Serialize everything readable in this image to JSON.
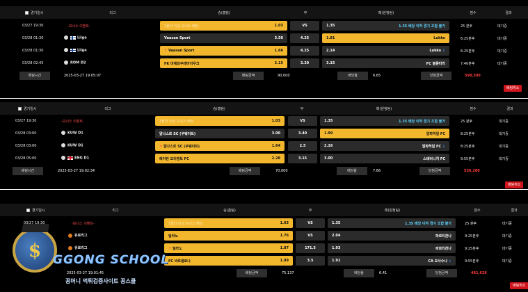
{
  "columns": {
    "date": "경기일시",
    "league": "리그",
    "home": "승(홈팀)",
    "draw": "무",
    "away": "패(원정팀)",
    "score": "점수",
    "result": "결과"
  },
  "summary_labels": {
    "bet_time": "배팅시간",
    "bet_amount": "배팅금액",
    "odds": "배당율",
    "win_amount": "당첨금액"
  },
  "bets": [
    {
      "rows": [
        {
          "date": "03/27 19:30",
          "league": "-보너스 이벤트-",
          "home": "1폴더 이상 보너스 배당",
          "home_odds": "1.03",
          "draw": "VS",
          "away": "1.35",
          "away_team": "1.35 배당 이하 경기 조합 불가",
          "score": "25 분후",
          "result": "대기중"
        },
        {
          "date": "03/28 01:30",
          "league": "Liiga",
          "flag": "fi",
          "home": "Vaasan Sport",
          "home_odds": "3.50",
          "draw": "4.25",
          "away": "1.81",
          "away_team": "Lukko",
          "score": "6:25분후",
          "result": "대기중"
        },
        {
          "date": "03/28 01:30",
          "league": "Liiga",
          "flag": "fi",
          "home": "Vaasan Sport",
          "home_odds": "1.66",
          "draw": "4.25",
          "away": "2.14",
          "away_team": "Lukko",
          "score": "6:25분후",
          "result": "대기중"
        },
        {
          "date": "03/28 02:45",
          "league": "ROM D2",
          "home": "FK 미에르쿠레아치우크",
          "home_odds": "2.15",
          "draw": "3.20",
          "away": "3.15",
          "away_team": "FC 볼룬타리",
          "score": "7:40분후",
          "result": "대기중"
        }
      ],
      "bet_time": "2025-03-27 19:05:07",
      "bet_amount": "90,000",
      "odds": "6.65",
      "win_amount": "598,500",
      "cancel": "배팅취소"
    },
    {
      "rows": [
        {
          "date": "03/27 19:30",
          "league": "-보너스 이벤트-",
          "home": "1폴더 이상 보너스 배당",
          "home_odds": "1.03",
          "draw": "VS",
          "away": "1.35",
          "away_team": "1.35 배당 이하 경기 조합 불가",
          "score": "25 분후",
          "result": "대기중"
        },
        {
          "date": "03/28 03:00",
          "league": "KUW D1",
          "home": "알나스르 SC (쿠웨이트)",
          "home_odds": "3.00",
          "draw": "3.40",
          "away": "1.99",
          "away_team": "알파하일 FC",
          "score": "8:25분후",
          "result": "대기중"
        },
        {
          "date": "03/28 03:00",
          "league": "KUW D1",
          "home": "알나스르 SC (쿠웨이트)",
          "home_odds": "1.64",
          "draw": "2.5",
          "away": "2.16",
          "away_team": "알파하일 FC",
          "score": "8:25분후",
          "result": "대기중"
        },
        {
          "date": "03/28 05:00",
          "league": "ENG D1",
          "home": "레이턴 오리엔트 FC",
          "home_odds": "2.28",
          "draw": "3.15",
          "away": "3.00",
          "away_team": "스테버니지 FC",
          "score": "9:55분후",
          "result": "대기중"
        }
      ],
      "bet_time": "2025-03-27 19:02:34",
      "bet_amount": "70,000",
      "odds": "7.66",
      "win_amount": "536,200",
      "cancel": "배팅취소"
    },
    {
      "rows": [
        {
          "date": "03/27 19:30",
          "league": "-보너스 이벤트-",
          "home": "1폴더 이상 보너스 배당",
          "home_odds": "1.03",
          "draw": "VS",
          "away": "1.35",
          "away_team": "1.35 배당 이하 경기 조합 불가",
          "score": "25 분후",
          "result": "대기중"
        },
        {
          "date": "",
          "league": "유로리그",
          "home": "밀라노",
          "home_odds": "1.76",
          "draw": "VS",
          "away": "2.04",
          "away_team": "파르티잔나",
          "score": "9:25분후",
          "result": "대기중"
        },
        {
          "date": "",
          "league": "유로리그",
          "home": "밀라노",
          "home_odds": "1.87",
          "draw": "171.5",
          "away": "1.93",
          "away_team": "파르티잔나",
          "score": "9:25분후",
          "result": "대기중"
        },
        {
          "date": "",
          "league": "",
          "home": "FC 바르셀로나",
          "home_odds": "1.89",
          "draw": "3.5",
          "away": "1.91",
          "away_team": "CA 오사수나",
          "score": "9:55분후",
          "result": "대기중"
        }
      ],
      "bet_time": "2025-03-27 19:01:45",
      "bet_amount": "75,137",
      "odds": "6.41",
      "win_amount": "481,628",
      "cancel": "배팅취소"
    }
  ],
  "watermark": {
    "brand": "GGONG SCHOOL",
    "subtitle": "꽁머니  먹튀검증사이트 꽁스쿨"
  },
  "colors": {
    "selected": "#f3b72e",
    "win": "#ff3b3b",
    "cancel": "#d0141b"
  }
}
